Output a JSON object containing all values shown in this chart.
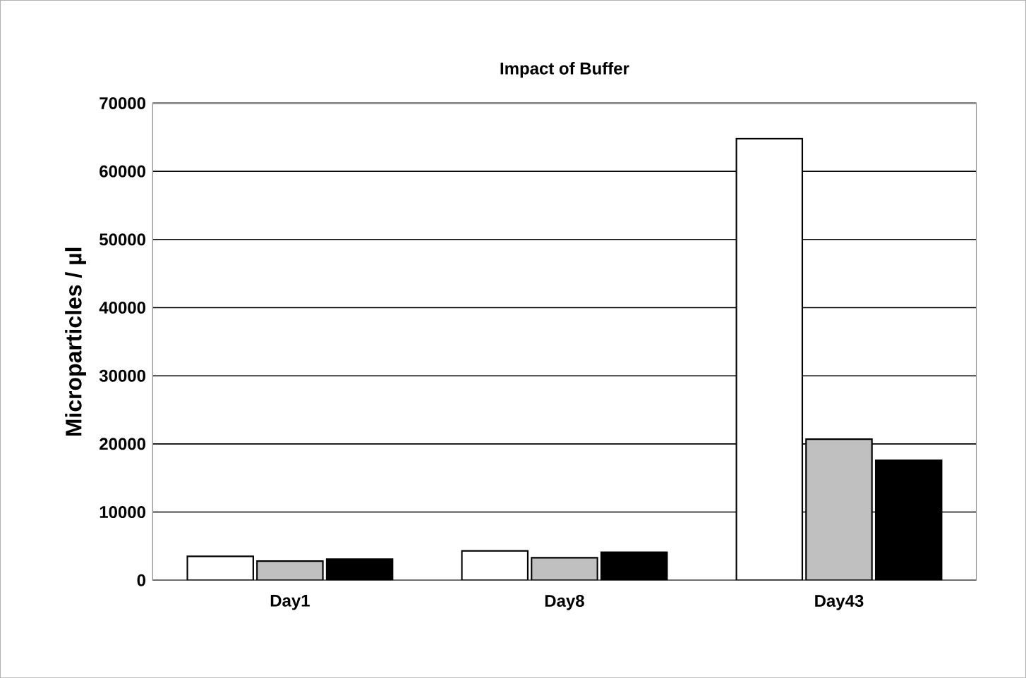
{
  "chart_data": {
    "type": "bar",
    "title": "Impact of Buffer",
    "ylabel": "Microparticles / µl",
    "categories": [
      "Day1",
      "Day8",
      "Day43"
    ],
    "series": [
      {
        "color": "#ffffff",
        "values": [
          3500,
          4300,
          64800
        ]
      },
      {
        "color": "#c0c0c0",
        "values": [
          2800,
          3300,
          20700
        ]
      },
      {
        "color": "#000000",
        "values": [
          3100,
          4100,
          17600
        ]
      }
    ],
    "ylim": [
      0,
      70000
    ],
    "yticks": [
      0,
      10000,
      20000,
      30000,
      40000,
      50000,
      60000,
      70000
    ],
    "grid": "y"
  }
}
